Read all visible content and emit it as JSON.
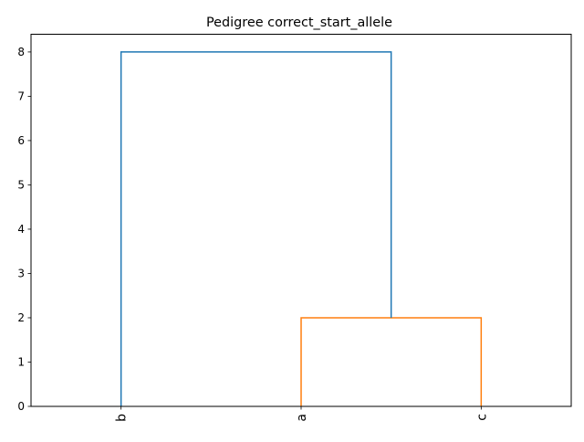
{
  "chart_data": {
    "type": "dendrogram",
    "title": "Pedigree correct_start_allele",
    "xlabel": "",
    "ylabel": "",
    "leaves": [
      "b",
      "a",
      "c"
    ],
    "ylim": [
      0,
      8.4
    ],
    "yticks": [
      0,
      1,
      2,
      3,
      4,
      5,
      6,
      7,
      8
    ],
    "links": [
      {
        "left": "a",
        "right": "c",
        "height": 2,
        "color": "#ff7f0e"
      },
      {
        "left": "b",
        "right": "a+c",
        "height": 8,
        "color": "#1f77b4"
      }
    ],
    "grid": false,
    "legend": "none"
  }
}
